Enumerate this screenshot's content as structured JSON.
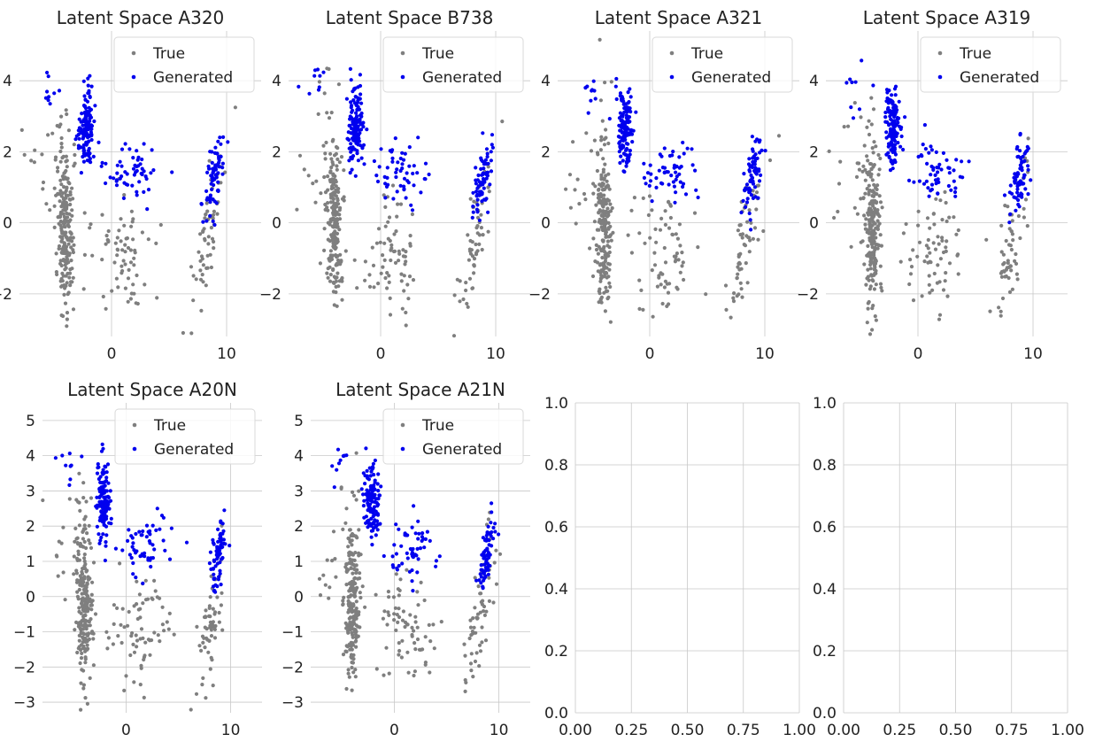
{
  "figure": {
    "panel_count": 8,
    "layout": "2 rows x 4 columns"
  },
  "colors": {
    "true_series": "#7f7f7f",
    "generated_series": "#0000ee",
    "grid": "#c8c8c8"
  },
  "chart_data": [
    {
      "type": "scatter",
      "title": "Latent Space A320",
      "xlim": [
        -8,
        13
      ],
      "ylim": [
        -3.2,
        5.4
      ],
      "xticks": [
        0,
        10
      ],
      "xtick_labels": [
        "0",
        "10"
      ],
      "yticks": [
        -2,
        0,
        2,
        4
      ],
      "ytick_labels": [
        "−2",
        "0",
        "2",
        "4"
      ],
      "grid": true,
      "legend_position": "top-right",
      "series": [
        {
          "name": "True"
        },
        {
          "name": "Generated"
        }
      ],
      "variant": 0
    },
    {
      "type": "scatter",
      "title": "Latent Space B738",
      "xlim": [
        -8,
        13
      ],
      "ylim": [
        -3.2,
        5.4
      ],
      "xticks": [
        0,
        10
      ],
      "xtick_labels": [
        "0",
        "10"
      ],
      "yticks": [
        -2,
        0,
        2,
        4
      ],
      "ytick_labels": [
        "−2",
        "0",
        "2",
        "4"
      ],
      "grid": true,
      "legend_position": "top-right",
      "series": [
        {
          "name": "True"
        },
        {
          "name": "Generated"
        }
      ],
      "variant": 1
    },
    {
      "type": "scatter",
      "title": "Latent Space A321",
      "xlim": [
        -8,
        13
      ],
      "ylim": [
        -3.2,
        5.4
      ],
      "xticks": [
        0,
        10
      ],
      "xtick_labels": [
        "0",
        "10"
      ],
      "yticks": [
        -2,
        0,
        2,
        4
      ],
      "ytick_labels": [
        "−2",
        "0",
        "2",
        "4"
      ],
      "grid": true,
      "legend_position": "top-right",
      "series": [
        {
          "name": "True"
        },
        {
          "name": "Generated"
        }
      ],
      "variant": 2
    },
    {
      "type": "scatter",
      "title": "Latent Space A319",
      "xlim": [
        -8,
        13
      ],
      "ylim": [
        -3.2,
        5.4
      ],
      "xticks": [
        0,
        10
      ],
      "xtick_labels": [
        "0",
        "10"
      ],
      "yticks": [
        -2,
        0,
        2,
        4
      ],
      "ytick_labels": [
        "−2",
        "0",
        "2",
        "4"
      ],
      "grid": true,
      "legend_position": "top-right",
      "series": [
        {
          "name": "True"
        },
        {
          "name": "Generated"
        }
      ],
      "variant": 3
    },
    {
      "type": "scatter",
      "title": "Latent Space A20N",
      "xlim": [
        -8,
        13
      ],
      "ylim": [
        -3.3,
        5.5
      ],
      "xticks": [
        0,
        10
      ],
      "xtick_labels": [
        "0",
        "10"
      ],
      "yticks": [
        -3,
        -2,
        -1,
        0,
        1,
        2,
        3,
        4,
        5
      ],
      "ytick_labels": [
        "−3",
        "−2",
        "−1",
        "0",
        "1",
        "2",
        "3",
        "4",
        "5"
      ],
      "grid": true,
      "legend_position": "top-right",
      "series": [
        {
          "name": "True"
        },
        {
          "name": "Generated"
        }
      ],
      "variant": 4
    },
    {
      "type": "scatter",
      "title": "Latent Space A21N",
      "xlim": [
        -8,
        13
      ],
      "ylim": [
        -3.3,
        5.5
      ],
      "xticks": [
        0,
        10
      ],
      "xtick_labels": [
        "0",
        "10"
      ],
      "yticks": [
        -3,
        -2,
        -1,
        0,
        1,
        2,
        3,
        4,
        5
      ],
      "ytick_labels": [
        "−3",
        "−2",
        "−1",
        "0",
        "1",
        "2",
        "3",
        "4",
        "5"
      ],
      "grid": true,
      "legend_position": "top-right",
      "series": [
        {
          "name": "True"
        },
        {
          "name": "Generated"
        }
      ],
      "variant": 5
    },
    {
      "type": "scatter",
      "title": "",
      "empty": true,
      "xlim": [
        0,
        1
      ],
      "ylim": [
        0,
        1
      ],
      "xticks": [
        0,
        0.25,
        0.5,
        0.75,
        1
      ],
      "xtick_labels": [
        "0.00",
        "0.25",
        "0.50",
        "0.75",
        "1.00"
      ],
      "yticks": [
        0,
        0.2,
        0.4,
        0.6,
        0.8,
        1
      ],
      "ytick_labels": [
        "0.0",
        "0.2",
        "0.4",
        "0.6",
        "0.8",
        "1.0"
      ],
      "grid": true,
      "series": []
    },
    {
      "type": "scatter",
      "title": "",
      "empty": true,
      "xlim": [
        0,
        1
      ],
      "ylim": [
        0,
        1
      ],
      "xticks": [
        0,
        0.25,
        0.5,
        0.75,
        1
      ],
      "xtick_labels": [
        "0.00",
        "0.25",
        "0.50",
        "0.75",
        "1.00"
      ],
      "yticks": [
        0,
        0.2,
        0.4,
        0.6,
        0.8,
        1
      ],
      "ytick_labels": [
        "0.0",
        "0.2",
        "0.4",
        "0.6",
        "0.8",
        "1.0"
      ],
      "grid": true,
      "series": []
    }
  ]
}
